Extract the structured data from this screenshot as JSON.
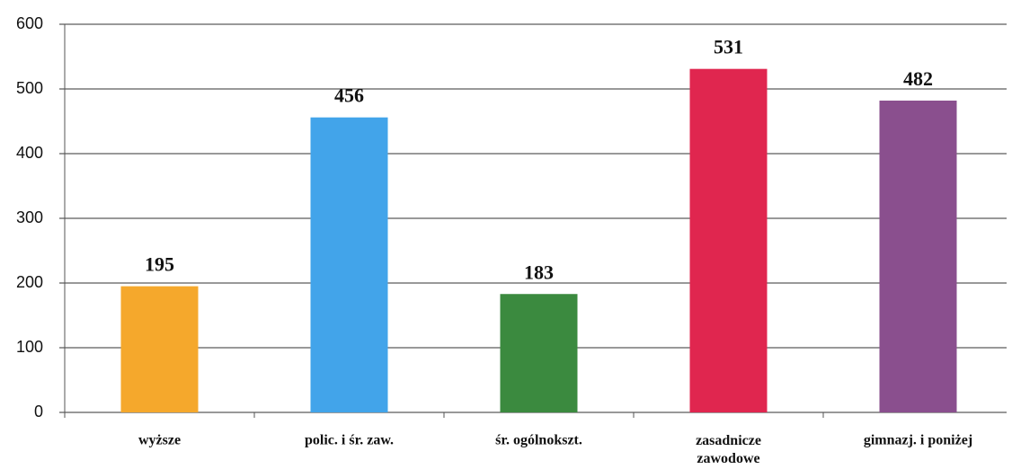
{
  "chart_data": {
    "type": "bar",
    "categories": [
      "wyższe",
      "polic. i śr. zaw.",
      "śr. ogólnokszt.",
      "zasadnicze\nzawodowe",
      "gimnazj. i poniżej"
    ],
    "values": [
      195,
      456,
      183,
      531,
      482
    ],
    "colors": [
      "#f5a82c",
      "#42a4ea",
      "#3b8a3f",
      "#e0264f",
      "#8a4f8e"
    ],
    "ylim": [
      0,
      600
    ],
    "yticks": [
      0,
      100,
      200,
      300,
      400,
      500,
      600
    ],
    "grid": true
  }
}
